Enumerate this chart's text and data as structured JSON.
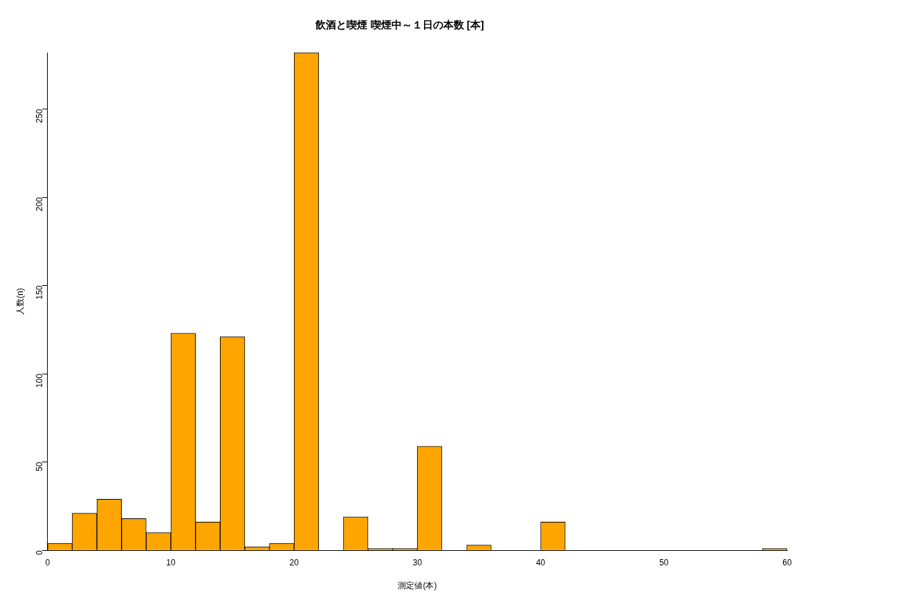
{
  "chart_data": {
    "type": "histogram",
    "title": "飲酒と喫煙 喫煙中～１日の本数 [本]",
    "xlabel": "測定値(本)",
    "ylabel": "人数(n)",
    "bins": [
      0,
      2,
      4,
      6,
      8,
      10,
      12,
      14,
      16,
      18,
      20,
      22,
      24,
      26,
      28,
      30,
      32,
      34,
      36,
      38,
      40,
      42,
      44,
      46,
      48,
      50,
      52,
      54,
      56,
      58,
      60
    ],
    "values": [
      4,
      21,
      29,
      18,
      10,
      123,
      16,
      121,
      2,
      4,
      282,
      0,
      19,
      1,
      1,
      59,
      0,
      3,
      0,
      0,
      16,
      0,
      0,
      0,
      0,
      0,
      0,
      0,
      0,
      1
    ],
    "color": "#ffa500",
    "xlim": [
      0,
      60
    ],
    "xticks": [
      0,
      10,
      20,
      30,
      40,
      50,
      60
    ],
    "ylim": [
      0,
      282
    ],
    "yticks": [
      0,
      50,
      100,
      150,
      200,
      250
    ],
    "grid": false,
    "legend": false
  }
}
